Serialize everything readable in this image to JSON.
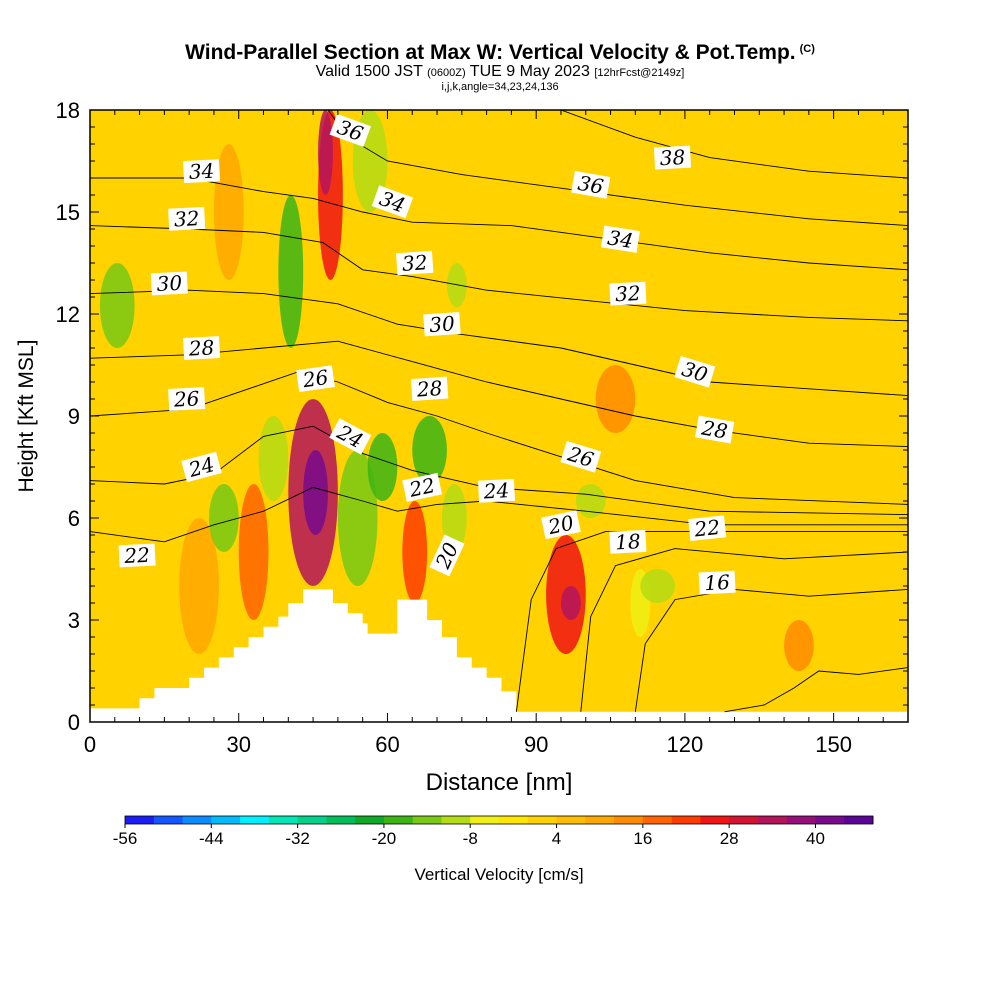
{
  "title": {
    "main": "Wind-Parallel Section at Max W: Vertical Velocity & Pot.Temp.",
    "copyright_mark": "(C)",
    "valid_prefix": "Valid 1500 JST",
    "valid_utc": "(0600Z)",
    "valid_date": "TUE 9 May 2023",
    "forecast_info": "[12hrFcst@2149z]",
    "indices": "i,j,k,angle=34,23,24,136"
  },
  "chart_data": {
    "type": "heatmap",
    "xlabel": "Distance [nm]",
    "ylabel": "Height [Kft MSL]",
    "xlim": [
      0,
      165
    ],
    "ylim": [
      0,
      18
    ],
    "xticks": [
      0,
      30,
      60,
      90,
      120,
      150
    ],
    "yticks": [
      0,
      3,
      6,
      9,
      12,
      15,
      18
    ],
    "colorbar": {
      "label": "Vertical Velocity [cm/s]",
      "min": -56,
      "max": 48,
      "step": 4,
      "tick_labels": [
        -56,
        -44,
        -32,
        -20,
        -8,
        4,
        16,
        28,
        40
      ],
      "colors": [
        "#1c1cf4",
        "#1656ff",
        "#0a8cff",
        "#00bcff",
        "#00f0ff",
        "#00e6b4",
        "#00d28c",
        "#00be5a",
        "#10a828",
        "#3cb414",
        "#78c814",
        "#b4dc14",
        "#f0f014",
        "#ffe600",
        "#ffd200",
        "#ffbe00",
        "#ffa800",
        "#ff8c00",
        "#ff6400",
        "#ff3c00",
        "#f01414",
        "#d21432",
        "#b4145a",
        "#960f78",
        "#780a8c",
        "#5a0596"
      ]
    },
    "terrain_profile_kft": [
      [
        0,
        0.4
      ],
      [
        10,
        0.4
      ],
      [
        10,
        0.7
      ],
      [
        13,
        0.7
      ],
      [
        13,
        1.0
      ],
      [
        20,
        1.0
      ],
      [
        20,
        1.3
      ],
      [
        23,
        1.3
      ],
      [
        23,
        1.6
      ],
      [
        26,
        1.6
      ],
      [
        26,
        1.9
      ],
      [
        29,
        1.9
      ],
      [
        29,
        2.2
      ],
      [
        32,
        2.2
      ],
      [
        32,
        2.5
      ],
      [
        35,
        2.5
      ],
      [
        35,
        2.8
      ],
      [
        38,
        2.8
      ],
      [
        38,
        3.1
      ],
      [
        40,
        3.1
      ],
      [
        40,
        3.5
      ],
      [
        43,
        3.5
      ],
      [
        43,
        3.9
      ],
      [
        49,
        3.9
      ],
      [
        49,
        3.5
      ],
      [
        52,
        3.5
      ],
      [
        52,
        3.2
      ],
      [
        55,
        3.2
      ],
      [
        55,
        2.9
      ],
      [
        56,
        2.9
      ],
      [
        56,
        2.6
      ],
      [
        62,
        2.6
      ],
      [
        62,
        3.6
      ],
      [
        68,
        3.6
      ],
      [
        68,
        3.0
      ],
      [
        71,
        3.0
      ],
      [
        71,
        2.5
      ],
      [
        74,
        2.5
      ],
      [
        74,
        1.9
      ],
      [
        77,
        1.9
      ],
      [
        77,
        1.6
      ],
      [
        80,
        1.6
      ],
      [
        80,
        1.3
      ],
      [
        83,
        1.3
      ],
      [
        83,
        0.9
      ],
      [
        86,
        0.9
      ],
      [
        86,
        0.3
      ],
      [
        165,
        0.3
      ]
    ],
    "vertical_velocity_cells": [
      {
        "x": [
          2,
          9
        ],
        "y": [
          11,
          13.5
        ],
        "w": -14
      },
      {
        "x": [
          18,
          26
        ],
        "y": [
          2,
          6
        ],
        "w": 8
      },
      {
        "x": [
          24,
          30
        ],
        "y": [
          5,
          7
        ],
        "w": -16
      },
      {
        "x": [
          25,
          31
        ],
        "y": [
          13,
          17
        ],
        "w": 8
      },
      {
        "x": [
          30,
          36
        ],
        "y": [
          3,
          7
        ],
        "w": 16
      },
      {
        "x": [
          34,
          40
        ],
        "y": [
          6.5,
          9
        ],
        "w": -12
      },
      {
        "x": [
          38,
          43
        ],
        "y": [
          11,
          15.5
        ],
        "w": -18
      },
      {
        "x": [
          40,
          50
        ],
        "y": [
          4,
          9.5
        ],
        "w": 32
      },
      {
        "x": [
          43,
          48
        ],
        "y": [
          5.5,
          8
        ],
        "w": 42
      },
      {
        "x": [
          46,
          51
        ],
        "y": [
          13,
          18
        ],
        "w": 24
      },
      {
        "x": [
          46,
          49
        ],
        "y": [
          15.5,
          18
        ],
        "w": 32
      },
      {
        "x": [
          50,
          58
        ],
        "y": [
          4,
          8
        ],
        "w": -14
      },
      {
        "x": [
          53,
          60
        ],
        "y": [
          15,
          18
        ],
        "w": -12
      },
      {
        "x": [
          56,
          62
        ],
        "y": [
          6.5,
          8.5
        ],
        "w": -20
      },
      {
        "x": [
          63,
          68
        ],
        "y": [
          3.5,
          6.5
        ],
        "w": 22
      },
      {
        "x": [
          65,
          72
        ],
        "y": [
          7,
          9
        ],
        "w": -18
      },
      {
        "x": [
          71,
          76
        ],
        "y": [
          5,
          7
        ],
        "w": -10
      },
      {
        "x": [
          72,
          76
        ],
        "y": [
          12.2,
          13.5
        ],
        "w": -12
      },
      {
        "x": [
          92,
          100
        ],
        "y": [
          2,
          5.5
        ],
        "w": 24
      },
      {
        "x": [
          95,
          99
        ],
        "y": [
          3,
          4
        ],
        "w": 32
      },
      {
        "x": [
          98,
          104
        ],
        "y": [
          6,
          7
        ],
        "w": -10
      },
      {
        "x": [
          102,
          110
        ],
        "y": [
          8.5,
          10.5
        ],
        "w": 12
      },
      {
        "x": [
          109,
          113
        ],
        "y": [
          2.5,
          4.5
        ],
        "w": -8
      },
      {
        "x": [
          111,
          118
        ],
        "y": [
          3.5,
          4.5
        ],
        "w": -12
      },
      {
        "x": [
          140,
          146
        ],
        "y": [
          1.5,
          3
        ],
        "w": 12
      }
    ],
    "potential_temperature_isentropes": [
      {
        "theta": 14,
        "points": [
          [
            128,
            0.3
          ],
          [
            136,
            0.5
          ],
          [
            142,
            1.0
          ],
          [
            147,
            1.5
          ],
          [
            155,
            1.4
          ],
          [
            165,
            1.6
          ]
        ]
      },
      {
        "theta": 16,
        "points": [
          [
            110,
            0.3
          ],
          [
            112,
            2.3
          ],
          [
            118,
            3.6
          ],
          [
            130,
            3.9
          ],
          [
            145,
            3.7
          ],
          [
            165,
            3.9
          ]
        ]
      },
      {
        "theta": 18,
        "points": [
          [
            99,
            0.3
          ],
          [
            101,
            3.1
          ],
          [
            106,
            4.6
          ],
          [
            118,
            5.1
          ],
          [
            140,
            4.8
          ],
          [
            165,
            5.0
          ]
        ]
      },
      {
        "theta": 20,
        "points": [
          [
            86,
            0.3
          ],
          [
            89,
            3.6
          ],
          [
            94,
            5.1
          ],
          [
            104,
            5.6
          ],
          [
            125,
            5.6
          ],
          [
            165,
            5.6
          ]
        ]
      },
      {
        "theta": 22,
        "points": [
          [
            0,
            5.6
          ],
          [
            15,
            5.3
          ],
          [
            25,
            5.8
          ],
          [
            35,
            6.2
          ],
          [
            45,
            6.9
          ],
          [
            55,
            6.5
          ],
          [
            62,
            6.2
          ],
          [
            70,
            6.4
          ],
          [
            80,
            6.5
          ],
          [
            100,
            6.2
          ],
          [
            125,
            5.8
          ],
          [
            165,
            5.8
          ]
        ]
      },
      {
        "theta": 24,
        "points": [
          [
            0,
            7.1
          ],
          [
            15,
            7.0
          ],
          [
            25,
            7.3
          ],
          [
            35,
            8.4
          ],
          [
            45,
            8.7
          ],
          [
            55,
            7.9
          ],
          [
            65,
            7.4
          ],
          [
            80,
            6.9
          ],
          [
            100,
            6.7
          ],
          [
            125,
            6.2
          ],
          [
            165,
            6.1
          ]
        ]
      },
      {
        "theta": 26,
        "points": [
          [
            0,
            9.0
          ],
          [
            20,
            9.2
          ],
          [
            30,
            9.7
          ],
          [
            42,
            10.3
          ],
          [
            50,
            10.0
          ],
          [
            60,
            9.4
          ],
          [
            70,
            9.0
          ],
          [
            80,
            8.5
          ],
          [
            95,
            7.8
          ],
          [
            110,
            7.1
          ],
          [
            130,
            6.6
          ],
          [
            165,
            6.4
          ]
        ]
      },
      {
        "theta": 28,
        "points": [
          [
            0,
            10.7
          ],
          [
            20,
            10.8
          ],
          [
            35,
            11.0
          ],
          [
            50,
            11.2
          ],
          [
            65,
            10.6
          ],
          [
            80,
            10.0
          ],
          [
            95,
            9.5
          ],
          [
            110,
            9.0
          ],
          [
            125,
            8.6
          ],
          [
            145,
            8.2
          ],
          [
            165,
            8.1
          ]
        ]
      },
      {
        "theta": 30,
        "points": [
          [
            0,
            12.6
          ],
          [
            20,
            12.7
          ],
          [
            35,
            12.6
          ],
          [
            50,
            12.3
          ],
          [
            62,
            11.7
          ],
          [
            75,
            11.4
          ],
          [
            95,
            11.0
          ],
          [
            110,
            10.5
          ],
          [
            125,
            10.0
          ],
          [
            145,
            9.8
          ],
          [
            165,
            9.6
          ]
        ]
      },
      {
        "theta": 32,
        "points": [
          [
            0,
            14.6
          ],
          [
            20,
            14.5
          ],
          [
            35,
            14.4
          ],
          [
            47,
            14.1
          ],
          [
            55,
            13.3
          ],
          [
            65,
            13.1
          ],
          [
            80,
            12.7
          ],
          [
            100,
            12.4
          ],
          [
            120,
            12.1
          ],
          [
            145,
            11.9
          ],
          [
            165,
            11.8
          ]
        ]
      },
      {
        "theta": 34,
        "points": [
          [
            0,
            16.0
          ],
          [
            20,
            16.0
          ],
          [
            35,
            15.6
          ],
          [
            45,
            15.4
          ],
          [
            55,
            15.0
          ],
          [
            65,
            14.7
          ],
          [
            85,
            14.6
          ],
          [
            105,
            14.2
          ],
          [
            125,
            13.8
          ],
          [
            145,
            13.5
          ],
          [
            165,
            13.3
          ]
        ]
      },
      {
        "theta": 36,
        "points": [
          [
            48,
            18.0
          ],
          [
            52,
            17.2
          ],
          [
            60,
            16.5
          ],
          [
            75,
            16.1
          ],
          [
            100,
            15.6
          ],
          [
            120,
            15.2
          ],
          [
            145,
            14.8
          ],
          [
            165,
            14.6
          ]
        ]
      },
      {
        "theta": 38,
        "points": [
          [
            95,
            18.0
          ],
          [
            110,
            17.2
          ],
          [
            125,
            16.6
          ],
          [
            145,
            16.2
          ],
          [
            165,
            16.0
          ]
        ]
      }
    ],
    "contour_labels": [
      {
        "text": "36",
        "x": 52.5,
        "y": 17.4,
        "angle": 20
      },
      {
        "text": "34",
        "x": 22.5,
        "y": 16.2,
        "angle": -3
      },
      {
        "text": "32",
        "x": 19.5,
        "y": 14.8,
        "angle": -3
      },
      {
        "text": "30",
        "x": 16,
        "y": 12.9,
        "angle": -3
      },
      {
        "text": "28",
        "x": 22.5,
        "y": 11.0,
        "angle": -3
      },
      {
        "text": "26",
        "x": 19.5,
        "y": 9.5,
        "angle": -3
      },
      {
        "text": "24",
        "x": 22.5,
        "y": 7.5,
        "angle": -15
      },
      {
        "text": "22",
        "x": 9.5,
        "y": 4.9,
        "angle": -3
      },
      {
        "text": "26",
        "x": 45.5,
        "y": 10.1,
        "angle": -8
      },
      {
        "text": "24",
        "x": 52.5,
        "y": 8.4,
        "angle": 28
      },
      {
        "text": "34",
        "x": 61,
        "y": 15.3,
        "angle": 20
      },
      {
        "text": "32",
        "x": 65.5,
        "y": 13.5,
        "angle": -4
      },
      {
        "text": "30",
        "x": 71,
        "y": 11.7,
        "angle": -4
      },
      {
        "text": "28",
        "x": 68.5,
        "y": 9.8,
        "angle": -4
      },
      {
        "text": "22",
        "x": 67,
        "y": 6.9,
        "angle": -12
      },
      {
        "text": "20",
        "x": 72,
        "y": 4.9,
        "angle": -65
      },
      {
        "text": "24",
        "x": 82,
        "y": 6.8,
        "angle": -3
      },
      {
        "text": "20",
        "x": 95,
        "y": 5.8,
        "angle": -12
      },
      {
        "text": "18",
        "x": 108.5,
        "y": 5.3,
        "angle": -3
      },
      {
        "text": "16",
        "x": 126.5,
        "y": 4.1,
        "angle": -3
      },
      {
        "text": "22",
        "x": 124.5,
        "y": 5.7,
        "angle": -6
      },
      {
        "text": "26",
        "x": 99,
        "y": 7.8,
        "angle": 17
      },
      {
        "text": "28",
        "x": 126,
        "y": 8.6,
        "angle": 10
      },
      {
        "text": "30",
        "x": 122,
        "y": 10.3,
        "angle": 17
      },
      {
        "text": "32",
        "x": 108.5,
        "y": 12.6,
        "angle": -3
      },
      {
        "text": "34",
        "x": 107,
        "y": 14.2,
        "angle": 9
      },
      {
        "text": "36",
        "x": 101,
        "y": 15.8,
        "angle": 10
      },
      {
        "text": "38",
        "x": 117.5,
        "y": 16.6,
        "angle": -3
      }
    ]
  }
}
